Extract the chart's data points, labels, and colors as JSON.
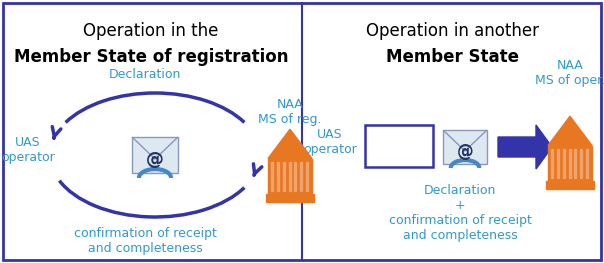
{
  "fig_width": 6.04,
  "fig_height": 2.63,
  "dpi": 100,
  "bg_color": "#ffffff",
  "border_color": "#3333aa",
  "title_color": "#000000",
  "arrow_color": "#3333aa",
  "label_color": "#3399cc",
  "orange_color": "#e87722",
  "left_title1": "Operation in the",
  "left_title2": "Member State of registration",
  "right_title1": "Operation in another",
  "right_title2": "Member State",
  "uas_operator_left": "UAS\noperator",
  "declaration_left": "Declaration",
  "confirmation_left": "confirmation of receipt\nand completeness",
  "naa_ms_reg": "NAA\nMS of reg.",
  "uas_operator_right": "UAS\noperator",
  "naa_ms_oper": "NAA\nMS of oper.",
  "declaration_right": "Declaration\n+\nconfirmation of receipt\nand completeness"
}
